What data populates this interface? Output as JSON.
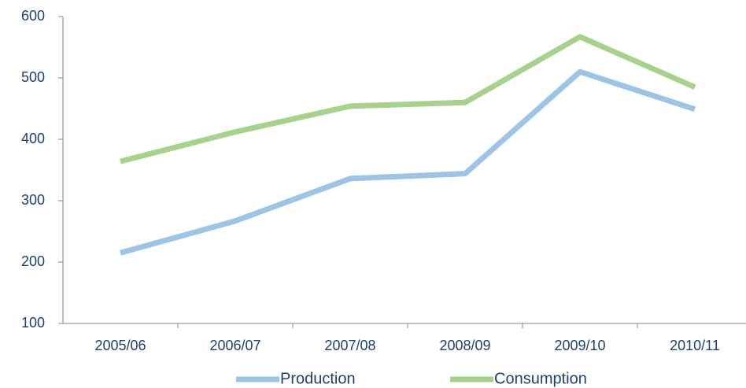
{
  "chart_data": {
    "type": "line",
    "categories": [
      "2005/06",
      "2006/07",
      "2007/08",
      "2008/09",
      "2009/10",
      "2010/11"
    ],
    "series": [
      {
        "name": "Production",
        "color": "#9dc3e6",
        "values": [
          215,
          267,
          336,
          344,
          510,
          449
        ]
      },
      {
        "name": "Consumption",
        "color": "#a9d18e",
        "values": [
          364,
          412,
          454,
          460,
          567,
          485
        ]
      }
    ],
    "ylim": [
      100,
      600
    ],
    "yticks": [
      100,
      200,
      300,
      400,
      500,
      600
    ],
    "grid": false,
    "legend": "bottom"
  }
}
